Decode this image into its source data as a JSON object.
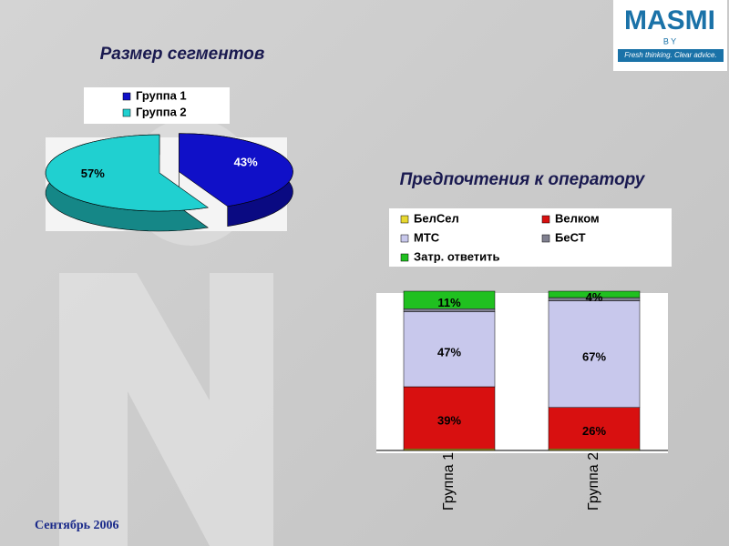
{
  "logo": {
    "name": "MASMI",
    "country": "B Y",
    "tagline": "Fresh thinking. Clear advice."
  },
  "footer": "Сентябрь 2006",
  "chart_data": [
    {
      "type": "pie",
      "title": "Размер сегментов",
      "categories": [
        "Группа 1",
        "Группа 2"
      ],
      "values": [
        43,
        57
      ],
      "value_labels": [
        "43%",
        "57%"
      ],
      "colors": [
        "#1010c8",
        "#20d0d0"
      ]
    },
    {
      "type": "stacked-bar",
      "title": "Предпочтения к оператору",
      "categories": [
        "Группа 1",
        "Группа 2"
      ],
      "ylim": [
        0,
        100
      ],
      "series": [
        {
          "name": "БелСел",
          "color": "#e8d830",
          "values": [
            1,
            1
          ]
        },
        {
          "name": "Велком",
          "color": "#d81010",
          "values": [
            39,
            26
          ],
          "value_labels": [
            "39%",
            "26%"
          ]
        },
        {
          "name": "МТС",
          "color": "#c8c8ec",
          "values": [
            47,
            67
          ],
          "value_labels": [
            "47%",
            "67%"
          ]
        },
        {
          "name": "БеСТ",
          "color": "#808090",
          "values": [
            2,
            2
          ]
        },
        {
          "name": "Затр. ответить",
          "color": "#20c020",
          "values": [
            11,
            4
          ],
          "value_labels": [
            "11%",
            "4%"
          ]
        }
      ]
    }
  ]
}
